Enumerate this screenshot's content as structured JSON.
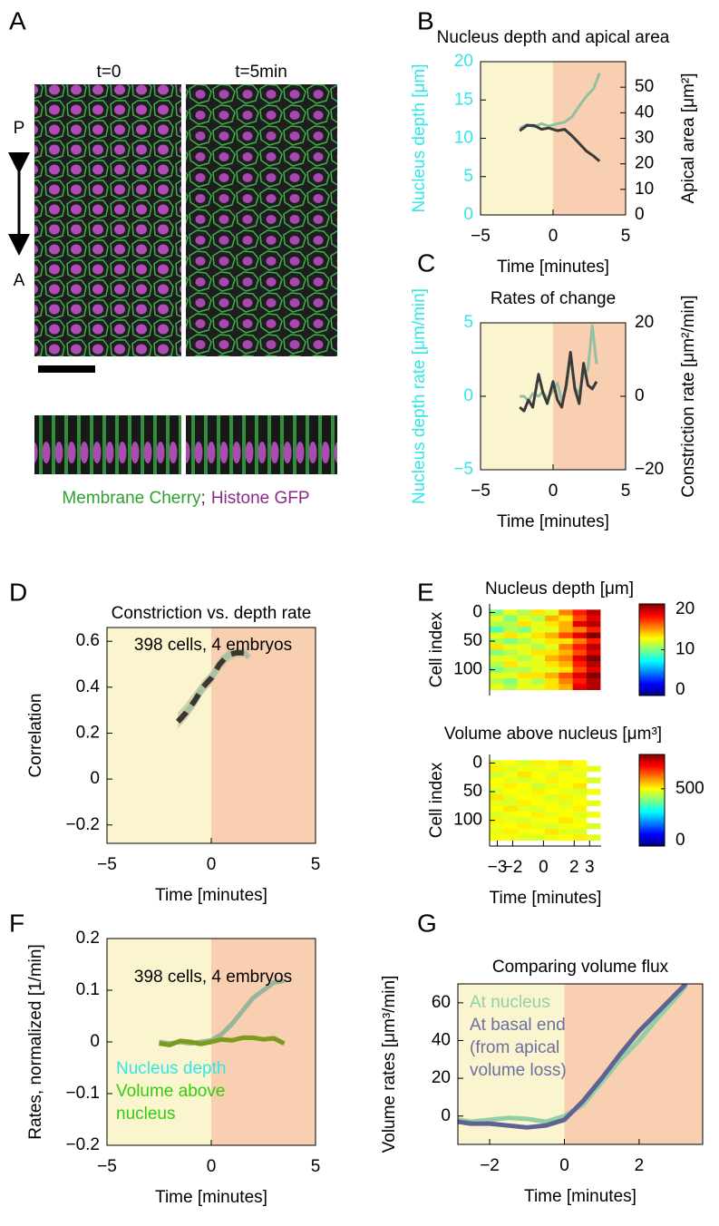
{
  "panel_labels": [
    "A",
    "B",
    "C",
    "D",
    "E",
    "F",
    "G"
  ],
  "micrographs": {
    "titles": [
      "t=0",
      "t=5min"
    ],
    "axis_ends": [
      "P",
      "A"
    ],
    "caption": [
      "Membrane Cherry",
      ";",
      "Histone GFP"
    ]
  },
  "chart_data": [
    {
      "type": "line",
      "title": "Nucleus depth and apical area",
      "xlabel": "Time [minutes]",
      "ylabel": "Nucleus depth [μm]",
      "ylabel_color": "#33e6e6",
      "y2label": "Apical area [μm²]",
      "xlim": [
        -5,
        5
      ],
      "xticks": [
        {
          "value": -5,
          "label": "−5"
        },
        0,
        5
      ],
      "ylim": [
        0,
        20
      ],
      "yticks": [
        0,
        5,
        10,
        15,
        20
      ],
      "y2lim": [
        0,
        60
      ],
      "y2ticks": [
        0,
        10,
        20,
        30,
        40,
        50
      ],
      "phase_boundary": 0,
      "phase_colors": [
        "#fbf5cf",
        "#f8cfb0"
      ],
      "series": [
        {
          "x": [
            -2.3,
            -1.8,
            -1.3,
            -0.8,
            -0.3,
            0.3,
            0.8,
            1.3,
            1.8,
            2.3,
            2.8,
            3.2
          ],
          "values": [
            11.3,
            11.8,
            11.5,
            11.9,
            11.6,
            11.9,
            12.1,
            12.8,
            14.2,
            15.5,
            16.5,
            18.5
          ],
          "color": "#93bfa5"
        },
        {
          "x": [
            -2.3,
            -1.8,
            -1.3,
            -0.8,
            -0.3,
            0.3,
            0.8,
            1.3,
            1.8,
            2.3,
            2.8,
            3.2
          ],
          "values": [
            33,
            35,
            35,
            33.5,
            34,
            33,
            33.5,
            31,
            28,
            25,
            23,
            21
          ],
          "color": "#3a3a3a",
          "axis": "y2"
        }
      ]
    },
    {
      "type": "line",
      "title": "Rates of change",
      "xlabel": "Time [minutes]",
      "ylabel": "Nucleus depth rate [μm/min]",
      "ylabel_color": "#33e6e6",
      "y2label": "Constriction rate [μm²/min]",
      "xlim": [
        -5,
        5
      ],
      "xticks": [
        {
          "value": -5,
          "label": "−5"
        },
        0,
        5
      ],
      "ylim": [
        -5,
        5
      ],
      "yticks": [
        {
          "value": -5,
          "label": "−5"
        },
        0,
        5
      ],
      "y2lim": [
        -20,
        20
      ],
      "y2ticks": [
        {
          "value": -20,
          "label": "−20"
        },
        0,
        20
      ],
      "phase_boundary": 0,
      "phase_colors": [
        "#fbf5cf",
        "#f8cfb0"
      ],
      "series": [
        {
          "x": [
            -2.3,
            -2,
            -1.7,
            -1.4,
            -1,
            -0.7,
            -0.4,
            0,
            0.3,
            0.6,
            0.9,
            1.2,
            1.5,
            1.8,
            2.1,
            2.4,
            2.7,
            3
          ],
          "values": [
            0,
            0,
            -0.3,
            0.2,
            0,
            0.3,
            -0.2,
            0.4,
            0.9,
            -0.3,
            0.5,
            2.8,
            0.6,
            0.2,
            1.5,
            1.8,
            4.8,
            2.2
          ],
          "color": "#93bfa5"
        },
        {
          "x": [
            -2.3,
            -2,
            -1.7,
            -1.4,
            -1,
            -0.7,
            -0.4,
            0,
            0.3,
            0.6,
            0.9,
            1.2,
            1.5,
            1.8,
            2.1,
            2.4,
            2.7,
            3
          ],
          "values": [
            -3,
            -4,
            -1,
            -3,
            6,
            1,
            -2,
            4,
            -1,
            -3,
            3,
            12,
            2,
            -2,
            9,
            3,
            2,
            4
          ],
          "color": "#3a3a3a",
          "axis": "y2"
        }
      ]
    },
    {
      "type": "line",
      "title": "Constriction vs. depth rate",
      "xlabel": "Time [minutes]",
      "ylabel": "Correlation",
      "annotation": "398 cells, 4 embryos",
      "xlim": [
        -5,
        5
      ],
      "xticks": [
        {
          "value": -5,
          "label": "−5"
        },
        0,
        5
      ],
      "ylim": [
        -0.28,
        0.66
      ],
      "yticks": [
        {
          "value": -0.2,
          "label": "−0.2"
        },
        0,
        0.2,
        0.4,
        0.6
      ],
      "phase_boundary": 0,
      "phase_colors": [
        "#fbf5cf",
        "#f8cfb0"
      ],
      "series": [
        {
          "x": [
            -1.6,
            -1.2,
            -0.8,
            -0.4,
            0,
            0.4,
            0.8,
            1.2,
            1.6,
            1.8
          ],
          "values": [
            0.25,
            0.29,
            0.34,
            0.4,
            0.44,
            0.5,
            0.54,
            0.55,
            0.55,
            0.53
          ],
          "lower": [
            0.22,
            0.26,
            0.31,
            0.37,
            0.41,
            0.47,
            0.51,
            0.53,
            0.53,
            0.52
          ],
          "upper": [
            0.29,
            0.33,
            0.38,
            0.43,
            0.47,
            0.53,
            0.56,
            0.57,
            0.57,
            0.55
          ],
          "color": "#a9c0a8",
          "dash_color": "#3a3630",
          "band_color": "#c8c6a0"
        }
      ]
    },
    {
      "type": "heatmap",
      "title": "Nucleus depth [μm]",
      "ylabel": "Cell index",
      "xlim": [
        -3.5,
        3.75
      ],
      "ylim": [
        -15,
        145
      ],
      "yticks": [
        0,
        50,
        100
      ],
      "clim": [
        0,
        20
      ],
      "cticks": [
        0,
        10,
        20
      ],
      "x": [
        -3.05,
        -2.15,
        -1.25,
        -0.35,
        0.55,
        1.45,
        2.35,
        3.25
      ],
      "y": [
        0,
        10,
        20,
        30,
        40,
        50,
        60,
        70,
        80,
        90,
        100,
        110,
        120,
        130
      ],
      "values": [
        [
          10,
          12,
          11,
          13,
          12,
          15,
          17,
          19
        ],
        [
          12,
          10,
          12,
          11,
          14,
          13,
          16,
          18
        ],
        [
          11,
          11,
          13,
          12,
          13,
          14,
          18,
          19
        ],
        [
          9,
          11,
          10,
          12,
          12,
          14,
          15,
          17
        ],
        [
          12,
          13,
          12,
          13,
          14,
          16,
          18,
          20
        ],
        [
          11,
          10,
          11,
          12,
          13,
          13,
          15,
          17
        ],
        [
          13,
          12,
          12,
          11,
          12,
          15,
          17,
          19
        ],
        [
          10,
          11,
          12,
          13,
          13,
          14,
          16,
          18
        ],
        [
          12,
          12,
          11,
          12,
          14,
          15,
          18,
          20
        ],
        [
          11,
          13,
          12,
          12,
          13,
          14,
          17,
          19
        ],
        [
          10,
          11,
          11,
          12,
          12,
          13,
          16,
          18
        ],
        [
          12,
          12,
          13,
          13,
          14,
          16,
          18,
          20
        ],
        [
          11,
          10,
          12,
          11,
          13,
          15,
          17,
          19
        ],
        [
          12,
          11,
          12,
          12,
          13,
          14,
          18,
          19
        ]
      ]
    },
    {
      "type": "heatmap",
      "title": "Volume above nucleus [μm³]",
      "ylabel": "Cell index",
      "xlabel": "Time [minutes]",
      "xlim": [
        -3.5,
        3.75
      ],
      "xticks": [
        {
          "value": -3,
          "label": "−3"
        },
        {
          "value": -2,
          "label": "−2"
        },
        0,
        2,
        3
      ],
      "ylim": [
        -15,
        145
      ],
      "yticks": [
        0,
        50,
        100
      ],
      "clim": [
        0,
        800
      ],
      "cticks": [
        0,
        500
      ],
      "x": [
        -3.05,
        -2.15,
        -1.25,
        -0.35,
        0.55,
        1.45,
        2.35,
        3.25
      ],
      "y": [
        0,
        10,
        20,
        30,
        40,
        50,
        60,
        70,
        80,
        90,
        100,
        110,
        120,
        130
      ],
      "values": [
        [
          480,
          500,
          470,
          510,
          490,
          520,
          500,
          null
        ],
        [
          510,
          470,
          490,
          480,
          500,
          470,
          490,
          480
        ],
        [
          460,
          490,
          520,
          500,
          470,
          500,
          480,
          null
        ],
        [
          500,
          480,
          470,
          490,
          510,
          490,
          500,
          470
        ],
        [
          490,
          510,
          500,
          460,
          480,
          500,
          520,
          null
        ],
        [
          470,
          500,
          490,
          510,
          500,
          480,
          470,
          490
        ],
        [
          520,
          480,
          500,
          490,
          470,
          510,
          490,
          null
        ],
        [
          480,
          470,
          510,
          500,
          490,
          470,
          500,
          480
        ],
        [
          500,
          520,
          480,
          470,
          500,
          490,
          510,
          null
        ],
        [
          470,
          490,
          500,
          510,
          480,
          500,
          480,
          490
        ],
        [
          510,
          480,
          470,
          490,
          500,
          520,
          490,
          null
        ],
        [
          490,
          500,
          510,
          480,
          470,
          490,
          500,
          470
        ],
        [
          480,
          510,
          490,
          500,
          520,
          480,
          470,
          null
        ],
        [
          500,
          490,
          480,
          470,
          490,
          500,
          510,
          480
        ]
      ]
    },
    {
      "type": "line",
      "ylabel": "Rates, normalized [1/min]",
      "xlabel": "Time [minutes]",
      "annotation": "398 cells, 4 embryos",
      "legend": "lower left",
      "xlim": [
        -5,
        5
      ],
      "xticks": [
        {
          "value": -5,
          "label": "−5"
        },
        0,
        5
      ],
      "ylim": [
        -0.2,
        0.2
      ],
      "yticks": [
        {
          "value": -0.2,
          "label": "−0.2"
        },
        {
          "value": -0.1,
          "label": "−0.1"
        },
        0,
        0.1,
        0.2
      ],
      "phase_boundary": 0,
      "phase_colors": [
        "#fbf5cf",
        "#f8cfb0"
      ],
      "series": [
        {
          "name": "Nucleus depth",
          "label_color": "#33e6e6",
          "color": "#97b59b",
          "x": [
            -2.5,
            -2,
            -1.5,
            -1,
            -0.5,
            0,
            0.5,
            1,
            1.5,
            2,
            2.5,
            3,
            3.5
          ],
          "values": [
            0,
            -0.003,
            0,
            -0.003,
            0,
            0.003,
            0.015,
            0.035,
            0.06,
            0.085,
            0.1,
            0.115,
            0.118
          ]
        },
        {
          "name": "Volume above nucleus",
          "label_color": "#33cc11",
          "color": "#7c9a1e",
          "x": [
            -2.5,
            -2,
            -1.5,
            -1,
            -0.5,
            0,
            0.5,
            1,
            1.5,
            2,
            2.5,
            3,
            3.5
          ],
          "values": [
            -0.003,
            -0.006,
            0.002,
            0,
            -0.004,
            0,
            0.005,
            0.003,
            0.008,
            0.008,
            0.005,
            0.007,
            -0.003
          ]
        }
      ]
    },
    {
      "type": "line",
      "title": "Comparing volume flux",
      "ylabel": "Volume rates [μm³/min]",
      "xlabel": "Time [minutes]",
      "legend": "upper left",
      "xlim": [
        -2.85,
        3.7
      ],
      "xticks": [
        {
          "value": -2,
          "label": "−2"
        },
        0,
        2
      ],
      "ylim": [
        -15,
        70
      ],
      "yticks": [
        0,
        20,
        40,
        60
      ],
      "phase_boundary": 0,
      "phase_colors": [
        "#fbf5cf",
        "#f8cfb0"
      ],
      "series": [
        {
          "name": "At nucleus",
          "label_color": "#8fd1ab",
          "color": "#93cfa6",
          "x": [
            -2.85,
            -2.5,
            -2,
            -1.5,
            -1,
            -0.5,
            0,
            0.5,
            1,
            1.5,
            2,
            2.5,
            3,
            3.25
          ],
          "values": [
            -2,
            -3,
            -2,
            -1,
            -1.5,
            -3,
            0,
            6,
            18,
            30,
            40,
            52,
            63,
            69
          ]
        },
        {
          "name": "At basal end (from apical volume loss)",
          "label_color": "#6c6fa0",
          "color": "#5e6394",
          "x": [
            -2.85,
            -2.5,
            -2,
            -1.5,
            -1,
            -0.5,
            0,
            0.5,
            1,
            1.5,
            2,
            2.5,
            3,
            3.25
          ],
          "values": [
            -3,
            -4,
            -4,
            -5,
            -6,
            -5,
            -2,
            8,
            20,
            33,
            45,
            55,
            65,
            70
          ]
        }
      ]
    }
  ]
}
